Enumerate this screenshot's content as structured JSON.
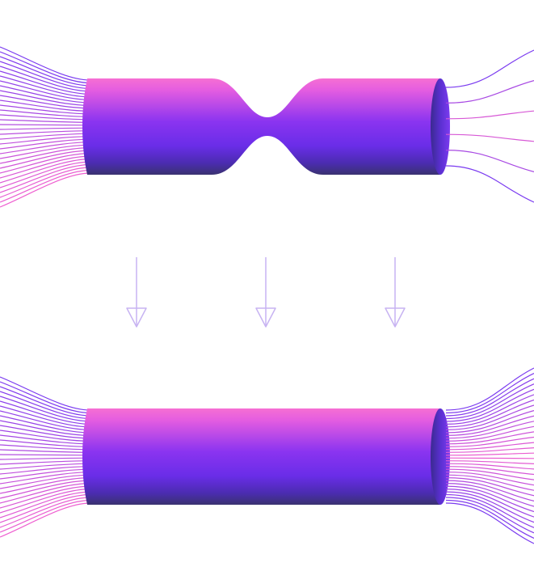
{
  "diagram": {
    "description_visible_text": "",
    "colors": {
      "tube_top": "#f66fd3",
      "tube_mid": "#7a2cf0",
      "tube_bottom": "#3a2a86",
      "cap_dark": "#4a2cc7",
      "line_pink": "#ee5fd0",
      "line_purple": "#7a3af0",
      "arrow": "#c7b3f2"
    },
    "icons": [
      "down-arrow-icon",
      "down-arrow-icon",
      "down-arrow-icon"
    ],
    "panels": [
      {
        "name": "constricted-tube",
        "constriction": true
      },
      {
        "name": "uniform-tube",
        "constriction": false
      }
    ]
  }
}
